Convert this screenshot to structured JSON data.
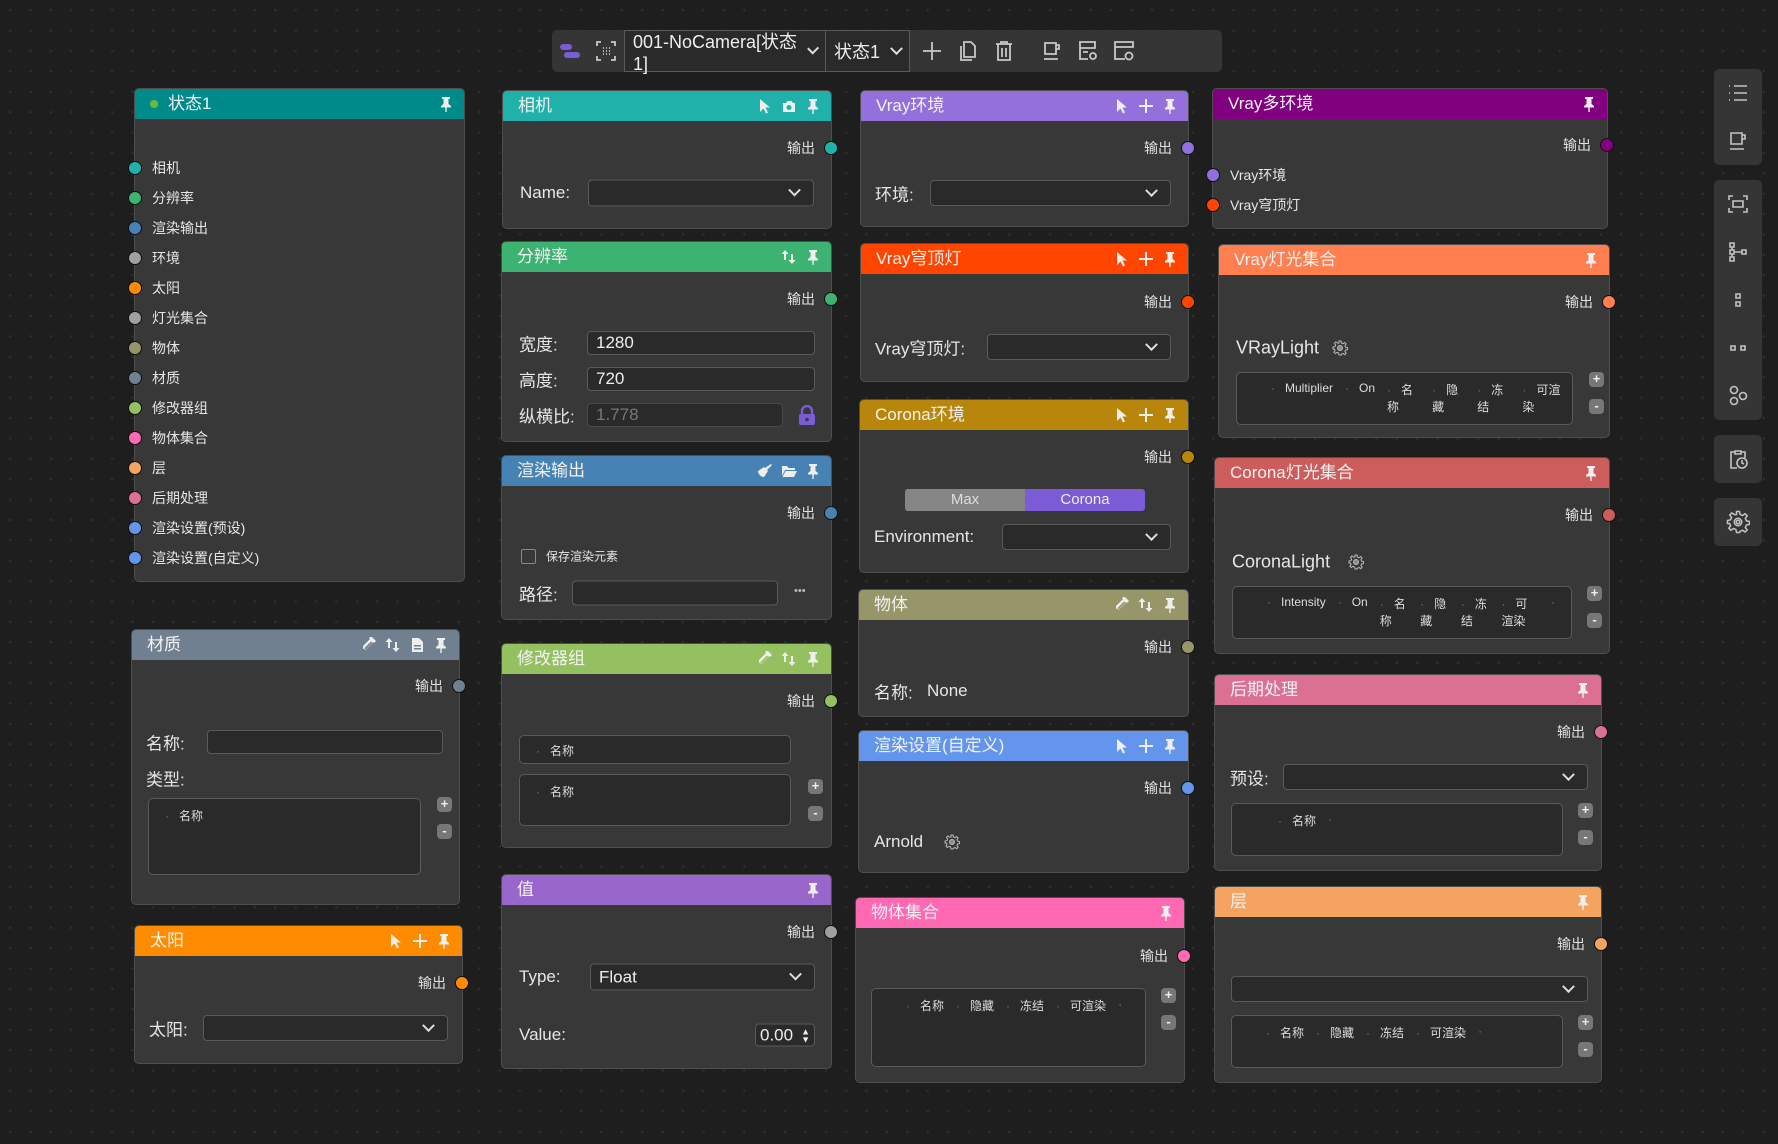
{
  "common": {
    "output": "输出",
    "plus": "+",
    "minus": "-"
  },
  "toolbar": {
    "scene": "001-NoCamera[状态1]",
    "state": "状态1"
  },
  "state_node": {
    "title": "状态1",
    "color": "#008B8B",
    "inputs": [
      {
        "label": "相机",
        "color": "#20B2AA"
      },
      {
        "label": "分辨率",
        "color": "#3CB371"
      },
      {
        "label": "渲染输出",
        "color": "#4682B4"
      },
      {
        "label": "环境",
        "color": "#A0A0A0"
      },
      {
        "label": "太阳",
        "color": "#FF8C00"
      },
      {
        "label": "灯光集合",
        "color": "#A0A0A0"
      },
      {
        "label": "物体",
        "color": "#969669"
      },
      {
        "label": "材质",
        "color": "#708090"
      },
      {
        "label": "修改器组",
        "color": "#94C060"
      },
      {
        "label": "物体集合",
        "color": "#FF69B4"
      },
      {
        "label": "层",
        "color": "#F4A460"
      },
      {
        "label": "后期处理",
        "color": "#DB7093"
      },
      {
        "label": "渲染设置(预设)",
        "color": "#6495ED"
      },
      {
        "label": "渲染设置(自定义)",
        "color": "#6495ED"
      }
    ]
  },
  "camera": {
    "title": "相机",
    "color": "#20B2AA",
    "name_label": "Name:",
    "name_value": ""
  },
  "resolution": {
    "title": "分辨率",
    "color": "#3CB371",
    "width_label": "宽度:",
    "width": "1280",
    "height_label": "高度:",
    "height": "720",
    "aspect_label": "纵横比:",
    "aspect": "1.778"
  },
  "render_output": {
    "title": "渲染输出",
    "color": "#4682B4",
    "save_elements_label": "保存渲染元素",
    "save_elements": false,
    "path_label": "路径:",
    "path": "",
    "browse": "•••"
  },
  "modifier_group": {
    "title": "修改器组",
    "color": "#94C060",
    "col": "名称"
  },
  "value": {
    "title": "值",
    "color": "#9966CC",
    "type_label": "Type:",
    "type": "Float",
    "value_label": "Value:",
    "value": "0.00"
  },
  "material": {
    "title": "材质",
    "color": "#708090",
    "name_label": "名称:",
    "name_value": "",
    "type_label": "类型:",
    "col": "名称"
  },
  "sun": {
    "title": "太阳",
    "color": "#FF8C00",
    "sun_label": "太阳:",
    "sun_value": ""
  },
  "vray_env": {
    "title": "Vray环境",
    "color": "#9370DB",
    "env_label": "环境:",
    "env_value": ""
  },
  "vray_dome": {
    "title": "Vray穹顶灯",
    "color": "#FF4500",
    "dome_label": "Vray穹顶灯:",
    "dome_value": ""
  },
  "corona_env": {
    "title": "Corona环境",
    "color": "#B8860B",
    "mode_options": [
      "Max",
      "Corona"
    ],
    "mode_selected": "Corona",
    "env_label": "Environment:",
    "env_value": ""
  },
  "object": {
    "title": "物体",
    "color": "#969669",
    "name_label": "名称:",
    "name_value": "None"
  },
  "render_custom": {
    "title": "渲染设置(自定义)",
    "color": "#6495ED",
    "renderer": "Arnold"
  },
  "object_set": {
    "title": "物体集合",
    "color": "#FF69B4",
    "columns": [
      "名称",
      "隐藏",
      "冻结",
      "可渲染"
    ]
  },
  "vray_multi_env": {
    "title": "Vray多环境",
    "color": "#800080",
    "inputs": [
      {
        "label": "Vray环境",
        "color": "#9370DB"
      },
      {
        "label": "Vray穹顶灯",
        "color": "#FF4500"
      }
    ]
  },
  "vray_lights": {
    "title": "Vray灯光集合",
    "color": "#FF7F50",
    "type": "VRayLight",
    "columns": [
      "Multiplier",
      "On",
      "名称",
      "隐藏",
      "冻结",
      "可渲染"
    ]
  },
  "corona_lights": {
    "title": "Corona灯光集合",
    "color": "#CD5C5C",
    "type": "CoronaLight",
    "columns": [
      "Intensity",
      "On",
      "名称",
      "隐藏",
      "冻结",
      "可渲染"
    ]
  },
  "post": {
    "title": "后期处理",
    "color": "#DB7093",
    "preset_label": "预设:",
    "preset_value": "",
    "col": "名称"
  },
  "layer": {
    "title": "层",
    "color": "#F4A460",
    "columns": [
      "名称",
      "隐藏",
      "冻结",
      "可渲染"
    ]
  },
  "accent": "#7B5BD6"
}
